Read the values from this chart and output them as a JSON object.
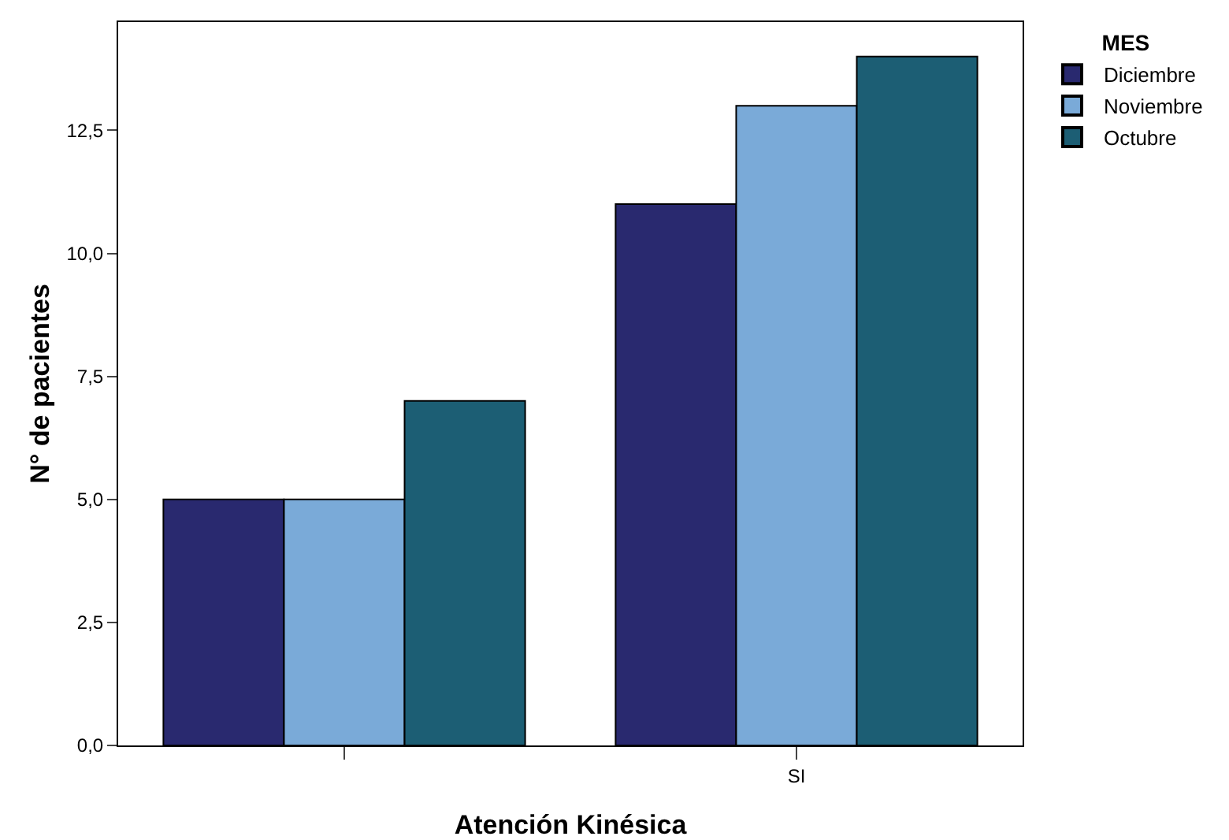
{
  "chart_data": {
    "type": "bar",
    "xlabel": "Atención Kinésica",
    "ylabel": "N° de pacientes",
    "legend_title": "MES",
    "legend": "top right",
    "categories": [
      null,
      "SI"
    ],
    "series": [
      {
        "name": "Diciembre",
        "color": "#29296f",
        "values": [
          5,
          11
        ]
      },
      {
        "name": "Noviembre",
        "color": "#7aaad8",
        "values": [
          5,
          13
        ]
      },
      {
        "name": "Octubre",
        "color": "#1c5e74",
        "values": [
          7,
          14
        ]
      }
    ],
    "ylim": [
      0,
      14.7
    ],
    "yticks": [
      {
        "value": 0,
        "label": "0,0"
      },
      {
        "value": 2.5,
        "label": "2,5"
      },
      {
        "value": 5,
        "label": "5,0"
      },
      {
        "value": 7.5,
        "label": "7,5"
      },
      {
        "value": 10,
        "label": "10,0"
      },
      {
        "value": 12.5,
        "label": "12,5"
      }
    ],
    "grid": false
  }
}
